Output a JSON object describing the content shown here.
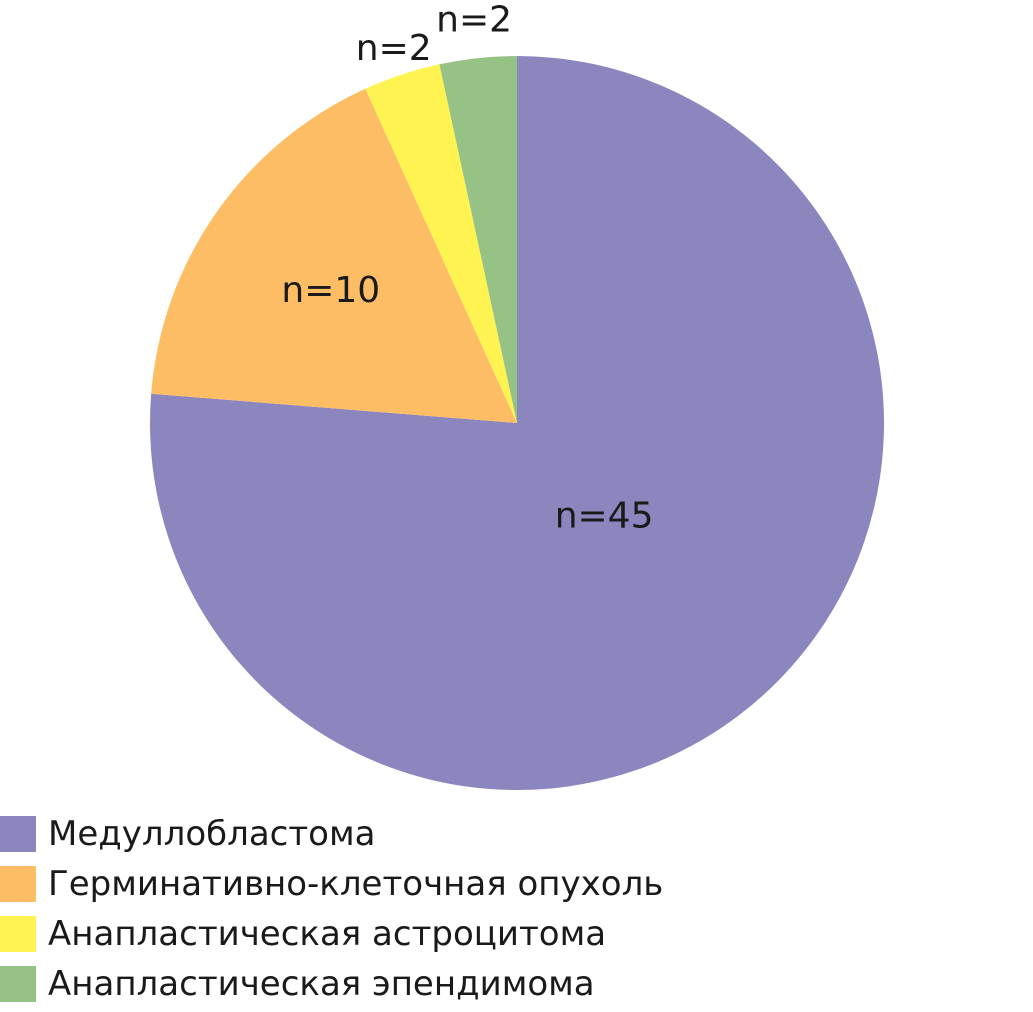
{
  "chart_data": {
    "type": "pie",
    "title": "",
    "categories": [
      "Медуллобластома",
      "Герминативно-клеточная опухоль",
      "Анапластическая астроцитома",
      "Анапластическая эпендимома"
    ],
    "values": [
      45,
      10,
      2,
      2
    ],
    "data_labels": [
      "n=45",
      "n=10",
      "n=2",
      "n=2"
    ],
    "colors": [
      "#8c86bf",
      "#fdbd65",
      "#fff352",
      "#97c286"
    ],
    "start_angle": "12 o'clock",
    "direction": "clockwise",
    "legend_position": "bottom-left"
  }
}
